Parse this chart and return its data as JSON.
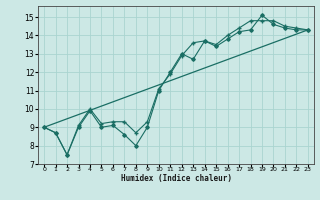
{
  "xlabel": "Humidex (Indice chaleur)",
  "ylabel": "",
  "xlim": [
    -0.5,
    23.5
  ],
  "ylim": [
    7,
    15.6
  ],
  "yticks": [
    7,
    8,
    9,
    10,
    11,
    12,
    13,
    14,
    15
  ],
  "xticks": [
    0,
    1,
    2,
    3,
    4,
    5,
    6,
    7,
    8,
    9,
    10,
    11,
    12,
    13,
    14,
    15,
    16,
    17,
    18,
    19,
    20,
    21,
    22,
    23
  ],
  "bg_color": "#cce8e5",
  "grid_color": "#aad4d0",
  "line_color": "#1a6e64",
  "line1_x": [
    0,
    1,
    2,
    3,
    4,
    5,
    6,
    7,
    8,
    9,
    10,
    11,
    12,
    13,
    14,
    15,
    16,
    17,
    18,
    19,
    20,
    21,
    22,
    23
  ],
  "line1_y": [
    9.0,
    8.7,
    7.5,
    9.0,
    9.9,
    9.0,
    9.1,
    8.6,
    8.0,
    9.0,
    11.0,
    12.0,
    13.0,
    12.7,
    13.7,
    13.4,
    13.8,
    14.2,
    14.3,
    15.1,
    14.6,
    14.4,
    14.3,
    14.3
  ],
  "line2_x": [
    0,
    1,
    2,
    3,
    4,
    5,
    6,
    7,
    8,
    9,
    10,
    11,
    12,
    13,
    14,
    15,
    16,
    17,
    18,
    19,
    20,
    21,
    22,
    23
  ],
  "line2_y": [
    9.0,
    8.7,
    7.5,
    9.1,
    10.0,
    9.2,
    9.3,
    9.3,
    8.7,
    9.3,
    11.1,
    11.9,
    12.9,
    13.6,
    13.7,
    13.5,
    14.0,
    14.4,
    14.8,
    14.8,
    14.8,
    14.5,
    14.4,
    14.3
  ],
  "line3_x": [
    0,
    23
  ],
  "line3_y": [
    9.0,
    14.3
  ],
  "figsize": [
    3.2,
    2.0
  ],
  "dpi": 100
}
